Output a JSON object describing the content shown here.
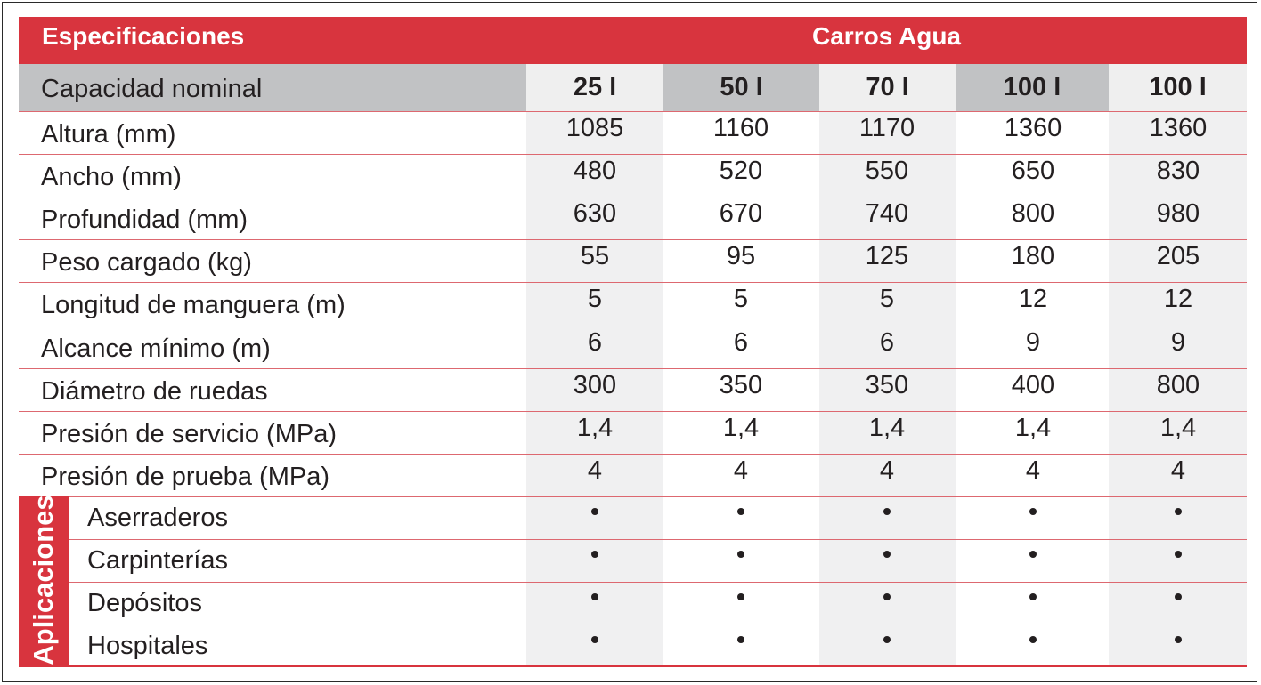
{
  "header": {
    "left_title": "Especificaciones",
    "right_title": "Carros Agua"
  },
  "capacity": {
    "label": "Capacidad nominal",
    "columns": [
      "25 l",
      "50 l",
      "70 l",
      "100 l",
      "100 l"
    ]
  },
  "specs": [
    {
      "label": "Altura (mm)",
      "values": [
        "1085",
        "1160",
        "1170",
        "1360",
        "1360"
      ]
    },
    {
      "label": "Ancho (mm)",
      "values": [
        "480",
        "520",
        "550",
        "650",
        "830"
      ]
    },
    {
      "label": "Profundidad (mm)",
      "values": [
        "630",
        "670",
        "740",
        "800",
        "980"
      ]
    },
    {
      "label": "Peso cargado (kg)",
      "values": [
        "55",
        "95",
        "125",
        "180",
        "205"
      ]
    },
    {
      "label": "Longitud de manguera (m)",
      "values": [
        "5",
        "5",
        "5",
        "12",
        "12"
      ]
    },
    {
      "label": "Alcance mínimo (m)",
      "values": [
        "6",
        "6",
        "6",
        "9",
        "9"
      ]
    },
    {
      "label": "Diámetro de ruedas",
      "values": [
        "300",
        "350",
        "350",
        "400",
        "800"
      ]
    },
    {
      "label": "Presión de servicio (MPa)",
      "values": [
        "1,4",
        "1,4",
        "1,4",
        "1,4",
        "1,4"
      ]
    },
    {
      "label": "Presión de prueba (MPa)",
      "values": [
        "4",
        "4",
        "4",
        "4",
        "4"
      ]
    }
  ],
  "applications": {
    "label": "Aplicaciones",
    "items": [
      {
        "label": "Aserraderos",
        "marks": [
          true,
          true,
          true,
          true,
          true
        ]
      },
      {
        "label": "Carpinterías",
        "marks": [
          true,
          true,
          true,
          true,
          true
        ]
      },
      {
        "label": "Depósitos",
        "marks": [
          true,
          true,
          true,
          true,
          true
        ]
      },
      {
        "label": "Hospitales",
        "marks": [
          true,
          true,
          true,
          true,
          true
        ]
      }
    ]
  },
  "colors": {
    "red": "#d8343e",
    "header_gray": "#c1c2c4",
    "column_shade": "#f0f0f1",
    "rule": "#dd6870"
  }
}
